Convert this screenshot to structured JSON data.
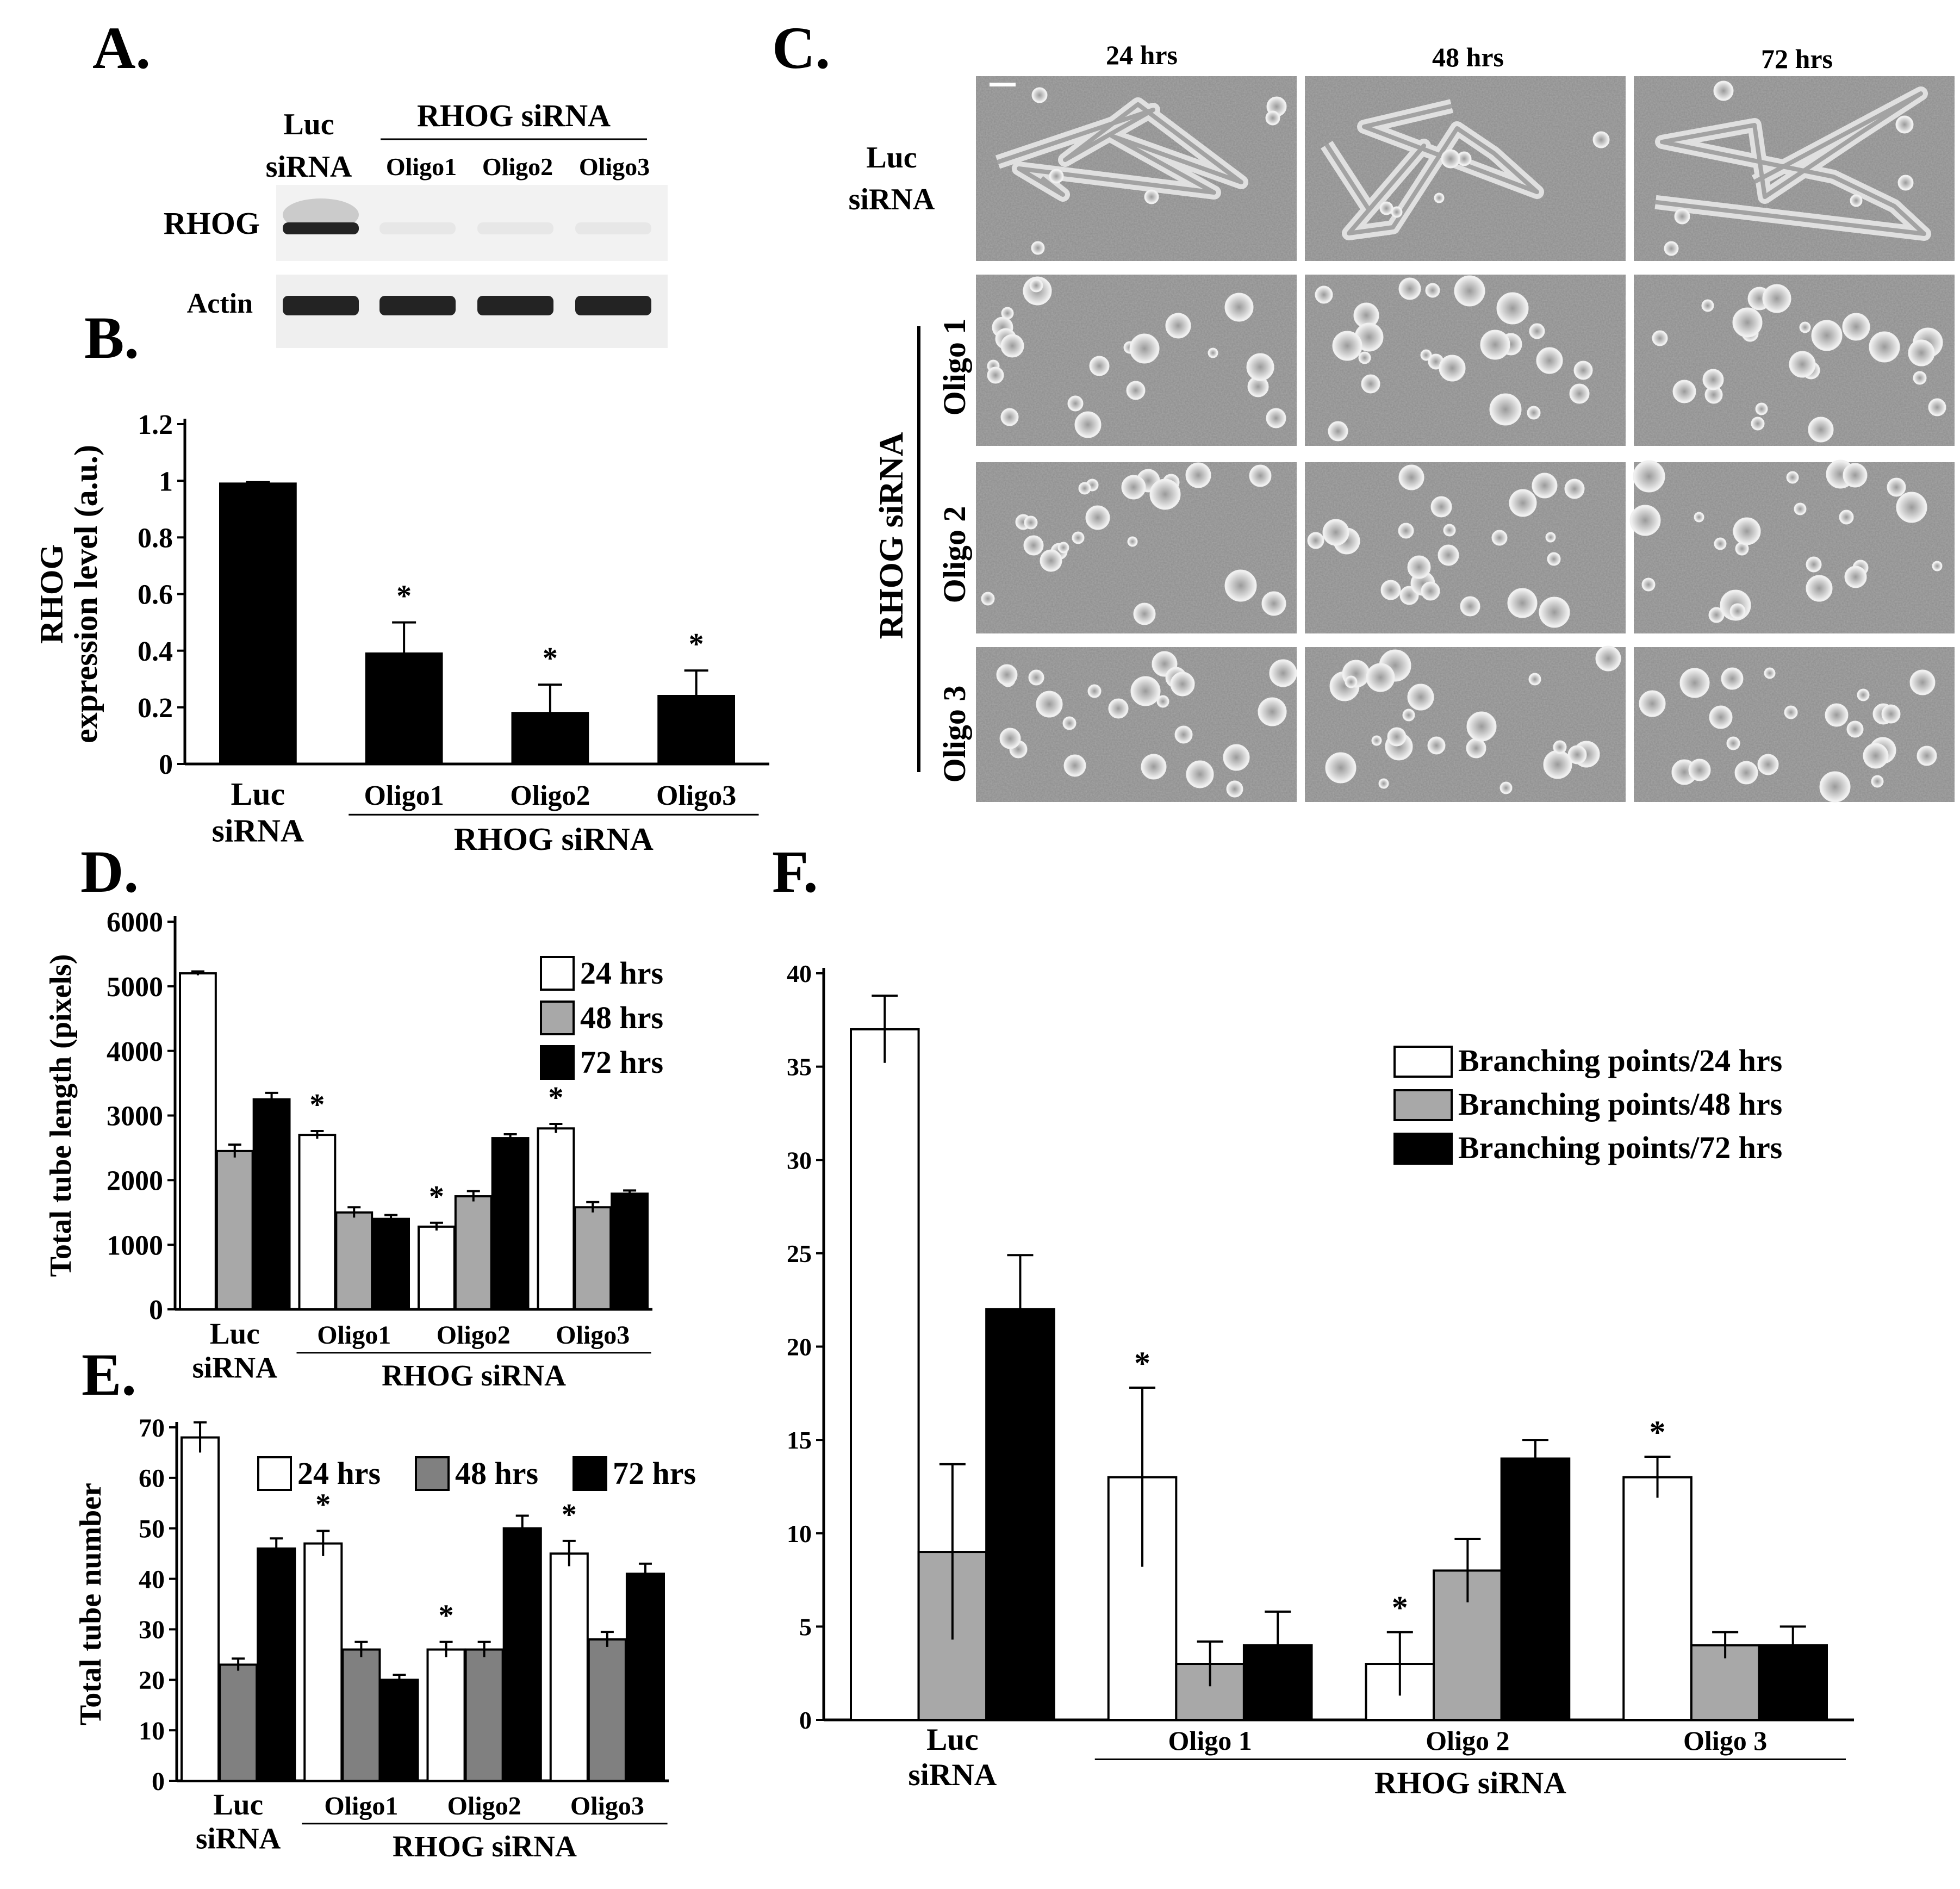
{
  "panel_labels": {
    "a": "A.",
    "b": "B.",
    "c": "C.",
    "d": "D.",
    "e": "E.",
    "f": "F."
  },
  "colors": {
    "bar_24": "#ffffff",
    "bar_48": "#a8a8a8",
    "bar_72": "#000000",
    "bar_48_e": "#808080",
    "micro_bg": "#8c8c8c"
  },
  "blot": {
    "luc_label": [
      "Luc",
      "siRNA"
    ],
    "group_label": "RHOG siRNA",
    "oligo_labels": [
      "Oligo1",
      "Oligo2",
      "Oligo3"
    ],
    "rows": [
      {
        "label": "RHOG",
        "band_intensity": [
          1.0,
          0.02,
          0.02,
          0.02
        ]
      },
      {
        "label": "Actin",
        "band_intensity": [
          1.0,
          1.0,
          1.0,
          1.0
        ]
      }
    ]
  },
  "micrographs": {
    "time_labels": [
      "24 hrs",
      "48 hrs",
      "72 hrs"
    ],
    "row_label_luc": [
      "Luc",
      "siRNA"
    ],
    "row_labels_oligo": [
      "Oligo 1",
      "Oligo 2",
      "Oligo 3"
    ],
    "group_label": "RHOG siRNA"
  },
  "chart_data": [
    {
      "panel": "B",
      "type": "bar",
      "ylabel": [
        "RHOG",
        "expression level (a.u.)"
      ],
      "ylim": [
        0,
        1.2
      ],
      "yticks": [
        "0",
        "0.2",
        "0.4",
        "0.6",
        "0.8",
        "1",
        "1.2"
      ],
      "categories": [
        [
          "Luc",
          "siRNA"
        ],
        [
          "Oligo1"
        ],
        [
          "Oligo2"
        ],
        [
          "Oligo3"
        ]
      ],
      "group_label": "RHOG siRNA",
      "series": [
        {
          "values": [
            0.99,
            0.39,
            0.18,
            0.24
          ],
          "errors": [
            0.005,
            0.11,
            0.1,
            0.09
          ]
        }
      ],
      "significance": [
        "",
        "*",
        "*",
        "*"
      ]
    },
    {
      "panel": "D",
      "type": "bar",
      "ylabel": "Total tube length (pixels)",
      "ylim": [
        0,
        6000
      ],
      "yticks": [
        "0",
        "1000",
        "2000",
        "3000",
        "4000",
        "5000",
        "6000"
      ],
      "categories": [
        [
          "Luc",
          "siRNA"
        ],
        [
          "Oligo1"
        ],
        [
          "Oligo2"
        ],
        [
          "Oligo3"
        ]
      ],
      "group_label": "RHOG siRNA",
      "legend": [
        "24 hrs",
        "48 hrs",
        "72 hrs"
      ],
      "legend_position": "top-right",
      "series": [
        {
          "name": "24 hrs",
          "values": [
            5200,
            2700,
            1280,
            2800
          ],
          "errors": [
            30,
            60,
            60,
            70
          ]
        },
        {
          "name": "48 hrs",
          "values": [
            2450,
            1500,
            1750,
            1580
          ],
          "errors": [
            100,
            80,
            80,
            80
          ]
        },
        {
          "name": "72 hrs",
          "values": [
            3250,
            1400,
            2650,
            1790
          ],
          "errors": [
            100,
            60,
            60,
            50
          ]
        }
      ],
      "significance": [
        "",
        "*",
        "*",
        "*"
      ]
    },
    {
      "panel": "E",
      "type": "bar",
      "ylabel": "Total tube number",
      "ylim": [
        0,
        70
      ],
      "yticks": [
        "0",
        "10",
        "20",
        "30",
        "40",
        "50",
        "60",
        "70"
      ],
      "categories": [
        [
          "Luc",
          "siRNA"
        ],
        [
          "Oligo1"
        ],
        [
          "Oligo2"
        ],
        [
          "Oligo3"
        ]
      ],
      "group_label": "RHOG siRNA",
      "legend": [
        "24 hrs",
        "48 hrs",
        "72 hrs"
      ],
      "legend_position": "top",
      "series": [
        {
          "name": "24 hrs",
          "values": [
            68,
            47,
            26,
            45
          ],
          "errors": [
            3,
            2.5,
            1.5,
            2.5
          ]
        },
        {
          "name": "48 hrs",
          "values": [
            23,
            26,
            26,
            28
          ],
          "errors": [
            1.2,
            1.5,
            1.5,
            1.5
          ]
        },
        {
          "name": "72 hrs",
          "values": [
            46,
            20,
            50,
            41
          ],
          "errors": [
            2,
            1,
            2.5,
            2
          ]
        }
      ],
      "significance": [
        "",
        "*",
        "*",
        "*"
      ]
    },
    {
      "panel": "F",
      "type": "bar",
      "ylim": [
        0,
        40
      ],
      "yticks": [
        "0",
        "5",
        "10",
        "15",
        "20",
        "25",
        "30",
        "35",
        "40"
      ],
      "categories": [
        [
          "Luc",
          "siRNA"
        ],
        [
          "Oligo 1"
        ],
        [
          "Oligo 2"
        ],
        [
          "Oligo 3"
        ]
      ],
      "group_label": "RHOG siRNA",
      "legend": [
        "Branching points/24 hrs",
        "Branching points/48 hrs",
        "Branching points/72 hrs"
      ],
      "legend_position": "top-right",
      "series": [
        {
          "name": "Branching points/24 hrs",
          "values": [
            37,
            13,
            3,
            13
          ],
          "errors": [
            1.8,
            4.8,
            1.7,
            1.1
          ]
        },
        {
          "name": "Branching points/48 hrs",
          "values": [
            9,
            3,
            8,
            4
          ],
          "errors": [
            4.7,
            1.2,
            1.7,
            0.7
          ]
        },
        {
          "name": "Branching points/72 hrs",
          "values": [
            22,
            4,
            14,
            4
          ],
          "errors": [
            2.9,
            1.8,
            1.0,
            1.0
          ]
        }
      ],
      "significance": [
        "",
        "*",
        "*",
        "*"
      ]
    }
  ]
}
